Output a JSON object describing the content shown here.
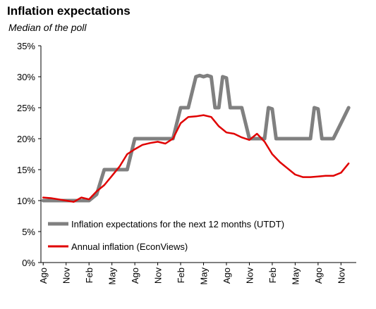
{
  "chart_data": {
    "type": "line",
    "title": "Inflation expectations",
    "subtitle": "Median of the poll",
    "xlabel": "",
    "ylabel": "",
    "ylim": [
      0,
      35
    ],
    "yticks": [
      "0%",
      "5%",
      "10%",
      "15%",
      "20%",
      "25%",
      "30%",
      "35%"
    ],
    "x_tick_labels": [
      "Ago",
      "Nov",
      "Feb",
      "May",
      "Ago",
      "Nov",
      "Feb",
      "May",
      "Ago",
      "Nov",
      "Feb",
      "May",
      "Ago",
      "Nov"
    ],
    "x_tick_months": [
      0,
      3,
      6,
      9,
      12,
      15,
      18,
      21,
      24,
      27,
      30,
      33,
      36,
      39
    ],
    "xlim": [
      -0.3,
      41
    ],
    "grid": false,
    "legend_position": "bottom-left",
    "series": [
      {
        "name": "Inflation expectations for the next 12 months (UTDT)",
        "color": "#808080",
        "x": [
          0,
          1,
          2,
          3,
          4,
          5,
          6,
          7,
          8,
          9,
          10,
          11,
          12,
          13,
          14,
          15,
          16,
          17,
          18,
          19,
          20,
          20.5,
          21,
          21.5,
          22,
          22.5,
          23,
          23.5,
          24,
          24.5,
          25,
          25.5,
          26,
          27,
          28,
          28.5,
          29,
          29.5,
          30,
          30.5,
          31,
          32,
          33,
          34,
          35,
          35.5,
          36,
          36.5,
          37,
          38,
          39,
          40
        ],
        "values": [
          10,
          10,
          10,
          10,
          10,
          10,
          10,
          11,
          15,
          15,
          15,
          15,
          20,
          20,
          20,
          20,
          20,
          20,
          25,
          25,
          30,
          30.2,
          30,
          30.2,
          30,
          25,
          25,
          30,
          29.8,
          25,
          25,
          25,
          25,
          20,
          20,
          20,
          20,
          25,
          24.8,
          20,
          20,
          20,
          20,
          20,
          20,
          25,
          24.8,
          20,
          20,
          20,
          22.5,
          25
        ]
      },
      {
        "name": "Annual inflation (EconViews)",
        "color": "#e00000",
        "x": [
          0,
          1,
          2,
          3,
          4,
          5,
          6,
          7,
          8,
          9,
          10,
          11,
          12,
          13,
          14,
          15,
          16,
          17,
          18,
          19,
          20,
          21,
          22,
          23,
          24,
          25,
          26,
          27,
          28,
          29,
          30,
          31,
          32,
          33,
          34,
          35,
          36,
          37,
          38,
          39,
          40
        ],
        "values": [
          10.5,
          10.4,
          10.2,
          10,
          9.8,
          10.5,
          10.2,
          11.5,
          12.5,
          14,
          15.5,
          17.5,
          18.3,
          19,
          19.3,
          19.5,
          19.2,
          20,
          22.5,
          23.5,
          23.6,
          23.8,
          23.5,
          22,
          21,
          20.8,
          20.2,
          19.8,
          20.8,
          19.5,
          17.5,
          16.2,
          15.2,
          14.2,
          13.8,
          13.8,
          13.9,
          14,
          14,
          14.5,
          16
        ]
      }
    ]
  }
}
